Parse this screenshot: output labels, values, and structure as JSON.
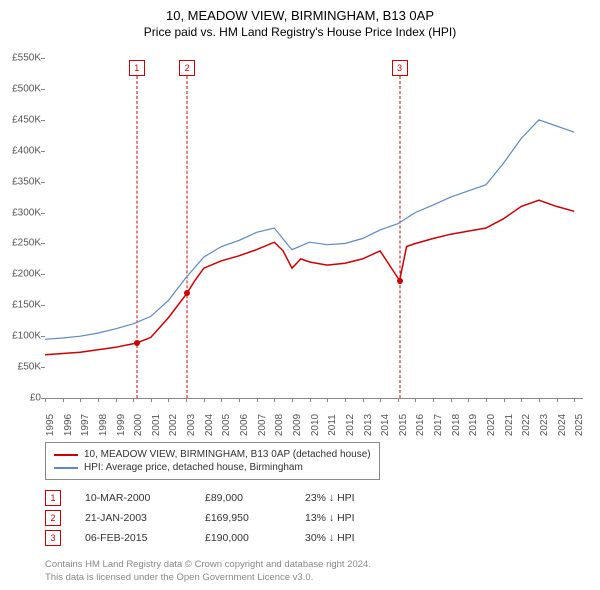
{
  "title": "10, MEADOW VIEW, BIRMINGHAM, B13 0AP",
  "subtitle": "Price paid vs. HM Land Registry's House Price Index (HPI)",
  "chart": {
    "type": "line",
    "background_color": "#ffffff",
    "xlim": [
      1995,
      2025.5
    ],
    "ylim": [
      0,
      550000
    ],
    "ytick_step": 50000,
    "yticks": [
      "£0",
      "£50K",
      "£100K",
      "£150K",
      "£200K",
      "£250K",
      "£300K",
      "£350K",
      "£400K",
      "£450K",
      "£500K",
      "£550K"
    ],
    "xticks": [
      1995,
      1996,
      1997,
      1998,
      1999,
      2000,
      2001,
      2002,
      2003,
      2004,
      2005,
      2006,
      2007,
      2008,
      2009,
      2010,
      2011,
      2012,
      2013,
      2014,
      2015,
      2016,
      2017,
      2018,
      2019,
      2020,
      2021,
      2022,
      2023,
      2024,
      2025
    ],
    "series": [
      {
        "name": "property",
        "label": "10, MEADOW VIEW, BIRMINGHAM, B13 0AP (detached house)",
        "color": "#d00000",
        "line_width": 1.5,
        "points": [
          [
            1995,
            70000
          ],
          [
            1996,
            72000
          ],
          [
            1997,
            74000
          ],
          [
            1998,
            78000
          ],
          [
            1999,
            82000
          ],
          [
            2000.2,
            89000
          ],
          [
            2001,
            98000
          ],
          [
            2002,
            130000
          ],
          [
            2003.06,
            169950
          ],
          [
            2003.5,
            190000
          ],
          [
            2004,
            210000
          ],
          [
            2005,
            222000
          ],
          [
            2006,
            230000
          ],
          [
            2007,
            240000
          ],
          [
            2008,
            252000
          ],
          [
            2008.5,
            238000
          ],
          [
            2009,
            210000
          ],
          [
            2009.5,
            225000
          ],
          [
            2010,
            220000
          ],
          [
            2011,
            215000
          ],
          [
            2012,
            218000
          ],
          [
            2013,
            225000
          ],
          [
            2014,
            238000
          ],
          [
            2015.1,
            190000
          ],
          [
            2015.5,
            245000
          ],
          [
            2016,
            250000
          ],
          [
            2017,
            258000
          ],
          [
            2018,
            265000
          ],
          [
            2019,
            270000
          ],
          [
            2020,
            275000
          ],
          [
            2021,
            290000
          ],
          [
            2022,
            310000
          ],
          [
            2023,
            320000
          ],
          [
            2024,
            310000
          ],
          [
            2025,
            302000
          ]
        ]
      },
      {
        "name": "hpi",
        "label": "HPI: Average price, detached house, Birmingham",
        "color": "#5b8ac6",
        "line_width": 1.2,
        "points": [
          [
            1995,
            95000
          ],
          [
            1996,
            97000
          ],
          [
            1997,
            100000
          ],
          [
            1998,
            105000
          ],
          [
            1999,
            112000
          ],
          [
            2000,
            120000
          ],
          [
            2001,
            132000
          ],
          [
            2002,
            158000
          ],
          [
            2003,
            195000
          ],
          [
            2004,
            228000
          ],
          [
            2005,
            245000
          ],
          [
            2006,
            255000
          ],
          [
            2007,
            268000
          ],
          [
            2008,
            275000
          ],
          [
            2008.7,
            250000
          ],
          [
            2009,
            240000
          ],
          [
            2010,
            252000
          ],
          [
            2011,
            248000
          ],
          [
            2012,
            250000
          ],
          [
            2013,
            258000
          ],
          [
            2014,
            272000
          ],
          [
            2015,
            282000
          ],
          [
            2016,
            300000
          ],
          [
            2017,
            312000
          ],
          [
            2018,
            325000
          ],
          [
            2019,
            335000
          ],
          [
            2020,
            345000
          ],
          [
            2021,
            380000
          ],
          [
            2022,
            420000
          ],
          [
            2023,
            450000
          ],
          [
            2024,
            440000
          ],
          [
            2025,
            430000
          ]
        ]
      }
    ],
    "markers": [
      {
        "n": "1",
        "x": 2000.2,
        "y": 89000
      },
      {
        "n": "2",
        "x": 2003.06,
        "y": 169950
      },
      {
        "n": "3",
        "x": 2015.1,
        "y": 190000
      }
    ]
  },
  "legend": {
    "border_color": "#888888",
    "items": [
      {
        "label": "10, MEADOW VIEW, BIRMINGHAM, B13 0AP (detached house)",
        "color": "#d00000"
      },
      {
        "label": "HPI: Average price, detached house, Birmingham",
        "color": "#5b8ac6"
      }
    ]
  },
  "transactions": [
    {
      "n": "1",
      "date": "10-MAR-2000",
      "price": "£89,000",
      "delta": "23% ↓ HPI"
    },
    {
      "n": "2",
      "date": "21-JAN-2003",
      "price": "£169,950",
      "delta": "13% ↓ HPI"
    },
    {
      "n": "3",
      "date": "06-FEB-2015",
      "price": "£190,000",
      "delta": "30% ↓ HPI"
    }
  ],
  "footer": {
    "line1": "Contains HM Land Registry data © Crown copyright and database right 2024.",
    "line2": "This data is licensed under the Open Government Licence v3.0."
  }
}
